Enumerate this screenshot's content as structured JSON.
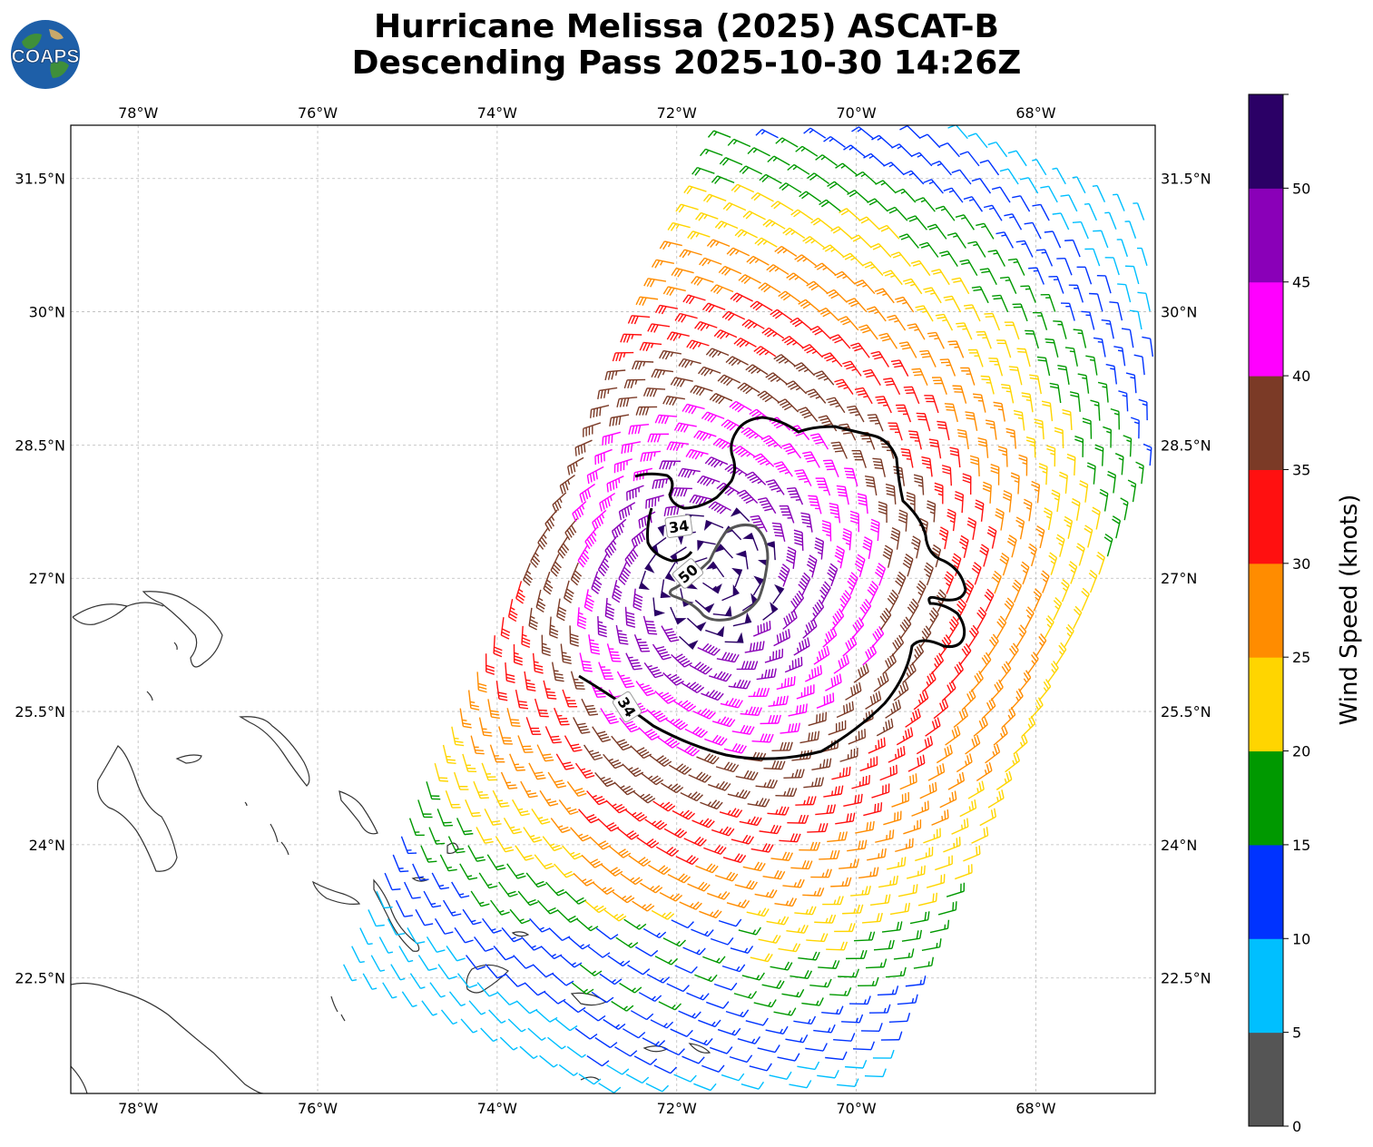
{
  "title": {
    "line1": "Hurricane Melissa (2025) ASCAT-B",
    "line2": "Descending Pass 2025-10-30 14:26Z"
  },
  "logo": {
    "text": "COAPS",
    "icon": "globe-logo-icon"
  },
  "axes": {
    "lon_ticks": [
      "78°W",
      "76°W",
      "74°W",
      "72°W",
      "70°W",
      "68°W"
    ],
    "lat_ticks": [
      "31.5°N",
      "30°N",
      "28.5°N",
      "27°N",
      "25.5°N",
      "24°N",
      "22.5°N"
    ],
    "lon_range": [
      -78.75,
      -66.67
    ],
    "lat_range": [
      21.2,
      32.1
    ],
    "grid": true
  },
  "contours": [
    {
      "label": "34",
      "label2": "34"
    },
    {
      "label": "50"
    }
  ],
  "colorbar": {
    "title": "Wind Speed (knots)",
    "tick_labels": [
      "0",
      "5",
      "10",
      "15",
      "20",
      "25",
      "30",
      "35",
      "40",
      "45",
      "50"
    ],
    "bins": [
      0,
      5,
      10,
      15,
      20,
      25,
      30,
      35,
      40,
      45,
      50,
      55
    ],
    "colors": [
      "#555555",
      "#00bfff",
      "#0033ff",
      "#009900",
      "#ffd500",
      "#ff8c00",
      "#ff1010",
      "#7b3a26",
      "#ff00ff",
      "#8a00b8",
      "#2b0066"
    ]
  },
  "storm_center": {
    "lon": -71.6,
    "lat": 27.0
  }
}
